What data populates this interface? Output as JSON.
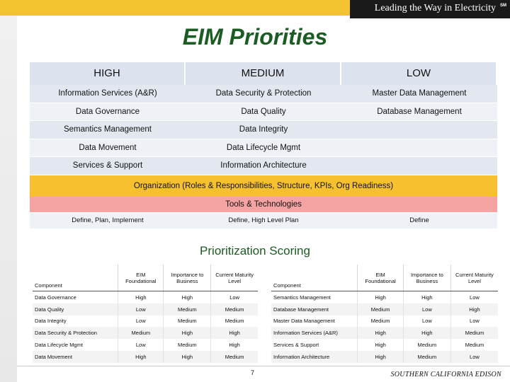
{
  "header": {
    "tagline": "Leading the Way in Electricity",
    "tagline_mark": "SM"
  },
  "title": "EIM Priorities",
  "priorities": {
    "headers": [
      "HIGH",
      "MEDIUM",
      "LOW"
    ],
    "rows": [
      [
        "Information Services (A&R)",
        "Data Security & Protection",
        "Master Data Management"
      ],
      [
        "Data Governance",
        "Data Quality",
        "Database Management"
      ],
      [
        "Semantics Management",
        "Data Integrity",
        ""
      ],
      [
        "Data Movement",
        "Data Lifecycle Mgmt",
        ""
      ],
      [
        "Services & Support",
        "Information Architecture",
        ""
      ]
    ],
    "org_band": "Organization (Roles & Responsibilities, Structure, KPIs, Org Readiness)",
    "tools_band": "Tools & Technologies",
    "approach": [
      "Define, Plan, Implement",
      "Define, High Level Plan",
      "Define"
    ]
  },
  "colors": {
    "title": "#1a5c22",
    "org_band": "#f6c02e",
    "tools_band": "#f5a3a3",
    "top_bar": "#f4c430"
  },
  "scoring": {
    "title": "Prioritization Scoring",
    "headers": [
      "Component",
      "EIM Foundational",
      "Importance to Business",
      "Current Maturity Level"
    ],
    "left": [
      [
        "Data Governance",
        "High",
        "High",
        "Low"
      ],
      [
        "Data Quality",
        "Low",
        "Medium",
        "Medium"
      ],
      [
        "Data Integrity",
        "Low",
        "Medium",
        "Medium"
      ],
      [
        "Data Security & Protection",
        "Medium",
        "High",
        "High"
      ],
      [
        "Data Lifecycle Mgmt",
        "Low",
        "Medium",
        "High"
      ],
      [
        "Data Movement",
        "High",
        "High",
        "Medium"
      ]
    ],
    "right": [
      [
        "Semantics Management",
        "High",
        "High",
        "Low"
      ],
      [
        "Database Management",
        "Medium",
        "Low",
        "High"
      ],
      [
        "Master Data Management",
        "Medium",
        "Low",
        "Low"
      ],
      [
        "Information Services (A&R)",
        "High",
        "High",
        "Medium"
      ],
      [
        "Services & Support",
        "High",
        "Medium",
        "Medium"
      ],
      [
        "Information Architecture",
        "High",
        "Medium",
        "Low"
      ]
    ]
  },
  "footer": {
    "page_number": "7",
    "brand": "SOUTHERN CALIFORNIA EDISON"
  }
}
